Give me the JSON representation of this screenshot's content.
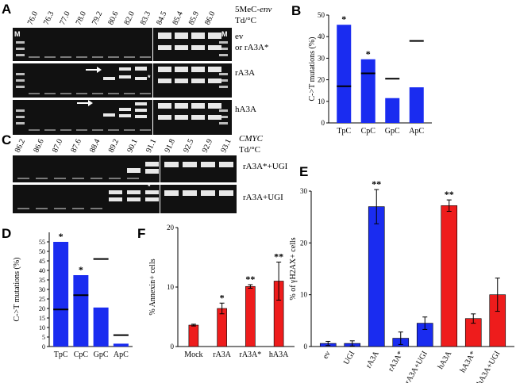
{
  "panels": {
    "A": {
      "label": "A",
      "marker_left": "M",
      "marker_right": "M",
      "temps": [
        "76.0",
        "76.3",
        "77.0",
        "78.0",
        "79.2",
        "80.6",
        "82.0",
        "83.3",
        "84.5",
        "85.4",
        "85.9",
        "86.0"
      ],
      "header_line1": "5MeC-",
      "header_line1_italic": "env",
      "header_line2": "Td/°C",
      "rows": [
        {
          "label_1": "ev",
          "label_2": "or rA3A*"
        },
        {
          "label_1": "rA3A"
        },
        {
          "label_1": "hA3A"
        }
      ],
      "asterisk": "*"
    },
    "C": {
      "label": "C",
      "temps": [
        "86.2",
        "86.6",
        "87.0",
        "87.6",
        "88.4",
        "89.2",
        "90.1",
        "91.1",
        "91.8",
        "92.5",
        "92.9",
        "93.1"
      ],
      "header_line1": "CMYC",
      "header_line2": "Td/°C",
      "rows": [
        {
          "label_1": "rA3A*+UGI"
        },
        {
          "label_1": "rA3A+UGI"
        }
      ],
      "asterisk": "*"
    }
  },
  "chart_data": [
    {
      "panel": "B",
      "type": "bar",
      "title": "",
      "xlabel": "",
      "ylabel": "C->T  mutations (%)",
      "categories": [
        "TpC",
        "CpC",
        "GpC",
        "ApC"
      ],
      "values": [
        45.5,
        29.5,
        11.5,
        16.5
      ],
      "inner_lines": [
        17,
        23,
        20.5,
        38
      ],
      "inner_line_drawn_inside_bar": [
        true,
        true,
        false,
        false
      ],
      "significance": [
        "*",
        "*",
        "",
        ""
      ],
      "ylim": [
        0,
        50
      ],
      "yticks": [
        0,
        10,
        20,
        30,
        40,
        50
      ],
      "colors": {
        "bar": "#1a2cf0",
        "line": "#000000"
      }
    },
    {
      "panel": "D",
      "type": "bar",
      "title": "",
      "xlabel": "",
      "ylabel": "C->T  mutations (%)",
      "categories": [
        "TpC",
        "CpC",
        "GpC",
        "ApC"
      ],
      "values": [
        55,
        37.5,
        20.5,
        1.5
      ],
      "inner_lines": [
        19.5,
        27,
        46,
        6
      ],
      "inner_line_drawn_inside_bar": [
        true,
        true,
        false,
        false
      ],
      "significance": [
        "*",
        "*",
        "",
        ""
      ],
      "ylim": [
        0,
        60
      ],
      "yticks": [
        0,
        5,
        10,
        15,
        20,
        25,
        30,
        35,
        40,
        45,
        50,
        55
      ],
      "colors": {
        "bar": "#1a2cf0",
        "line": "#000000"
      }
    },
    {
      "panel": "F",
      "type": "bar",
      "title": "",
      "xlabel": "",
      "ylabel": "% Annexin+ cells",
      "categories": [
        "Mock",
        "rA3A",
        "rA3A*",
        "hA3A"
      ],
      "values": [
        3.6,
        6.4,
        10.1,
        11
      ],
      "errors": [
        0.15,
        0.9,
        0.3,
        3.2
      ],
      "significance": [
        "",
        "*",
        "**",
        "**"
      ],
      "ylim": [
        0,
        20
      ],
      "yticks": [
        0,
        10,
        20
      ],
      "colors": {
        "bar": "#ee1c1c"
      }
    },
    {
      "panel": "E",
      "type": "bar",
      "title": "",
      "xlabel": "",
      "ylabel": "% of γH2AX+ cells",
      "categories": [
        "ev",
        "UGI",
        "rA3A",
        "rA3A*",
        "rA3A+UGI",
        "hA3A",
        "hA3A*",
        "hA3A+UGI"
      ],
      "values": [
        0.6,
        0.6,
        27,
        1.6,
        4.5,
        27.2,
        5.4,
        10
      ],
      "errors": [
        0.4,
        0.5,
        3.3,
        1.2,
        1.2,
        1.1,
        0.9,
        3.2
      ],
      "significance": [
        "",
        "",
        "**",
        "",
        "",
        "**",
        "",
        ""
      ],
      "ylim": [
        0,
        30
      ],
      "yticks": [
        0,
        10,
        20,
        30
      ],
      "series_colors": [
        "#1a2cf0",
        "#1a2cf0",
        "#1a2cf0",
        "#1a2cf0",
        "#1a2cf0",
        "#ee1c1c",
        "#ee1c1c",
        "#ee1c1c"
      ],
      "colors": {
        "blue": "#1a2cf0",
        "red": "#ee1c1c"
      }
    }
  ],
  "panel_labels": {
    "B": "B",
    "D": "D",
    "E": "E",
    "F": "F"
  }
}
